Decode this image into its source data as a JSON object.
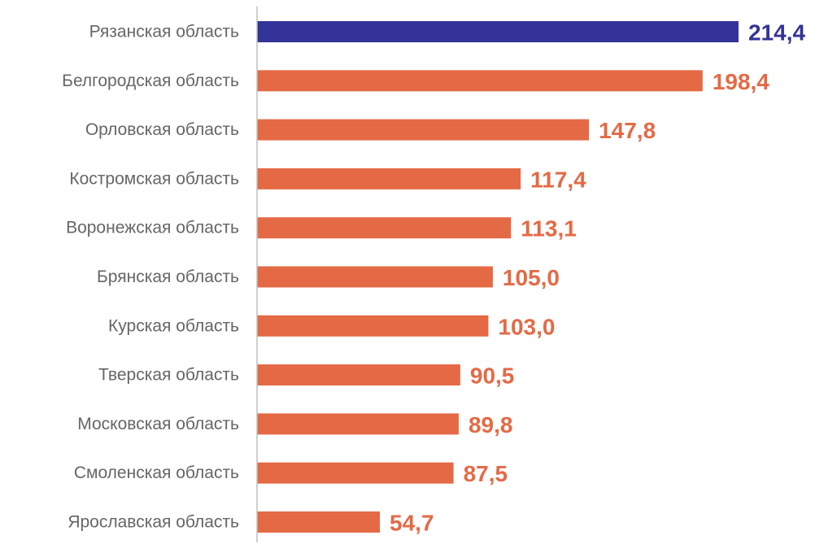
{
  "chart_data": {
    "type": "bar",
    "orientation": "horizontal",
    "title": "",
    "xlabel": "",
    "ylabel": "",
    "categories": [
      "Рязанская область",
      "Белгородская область",
      "Орловская область",
      "Костромская область",
      "Воронежская область",
      "Брянская область",
      "Курская область",
      "Тверская область",
      "Московская область",
      "Смоленская область",
      "Ярославская область"
    ],
    "values": [
      214.4,
      198.4,
      147.8,
      117.4,
      113.1,
      105.0,
      103.0,
      90.5,
      89.8,
      87.5,
      54.7
    ],
    "value_labels": [
      "214,4",
      "198,4",
      "147,8",
      "117,4",
      "113,1",
      "105,0",
      "103,0",
      "90,5",
      "89,8",
      "87,5",
      "54,7"
    ],
    "highlight_index": 0,
    "colors": {
      "highlight": "#333399",
      "default": "#E46A46",
      "axis": "#BFBFBF",
      "category_text": "#666666"
    },
    "xlim": [
      0,
      214.4
    ],
    "grid": false,
    "legend": "none"
  }
}
